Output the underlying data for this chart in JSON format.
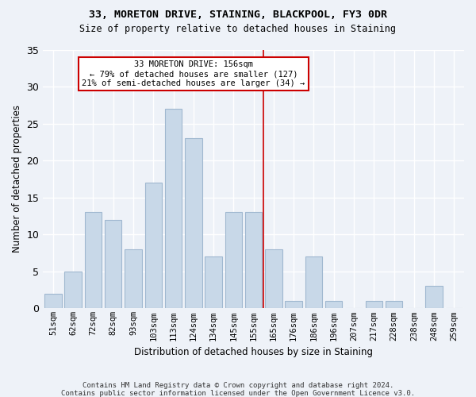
{
  "title1": "33, MORETON DRIVE, STAINING, BLACKPOOL, FY3 0DR",
  "title2": "Size of property relative to detached houses in Staining",
  "xlabel": "Distribution of detached houses by size in Staining",
  "ylabel": "Number of detached properties",
  "categories": [
    "51sqm",
    "62sqm",
    "72sqm",
    "82sqm",
    "93sqm",
    "103sqm",
    "113sqm",
    "124sqm",
    "134sqm",
    "145sqm",
    "155sqm",
    "165sqm",
    "176sqm",
    "186sqm",
    "196sqm",
    "207sqm",
    "217sqm",
    "228sqm",
    "238sqm",
    "248sqm",
    "259sqm"
  ],
  "values": [
    2,
    5,
    13,
    12,
    8,
    17,
    27,
    23,
    7,
    13,
    13,
    8,
    1,
    7,
    1,
    0,
    1,
    1,
    0,
    3,
    0
  ],
  "bar_color": "#c8d8e8",
  "bar_edgecolor": "#a0b8d0",
  "background_color": "#eef2f8",
  "grid_color": "#ffffff",
  "vline_x": 10.5,
  "vline_color": "#cc0000",
  "annotation_text": "33 MORETON DRIVE: 156sqm\n← 79% of detached houses are smaller (127)\n21% of semi-detached houses are larger (34) →",
  "annotation_box_color": "#cc0000",
  "ylim": [
    0,
    35
  ],
  "yticks": [
    0,
    5,
    10,
    15,
    20,
    25,
    30,
    35
  ],
  "footnote1": "Contains HM Land Registry data © Crown copyright and database right 2024.",
  "footnote2": "Contains public sector information licensed under the Open Government Licence v3.0."
}
